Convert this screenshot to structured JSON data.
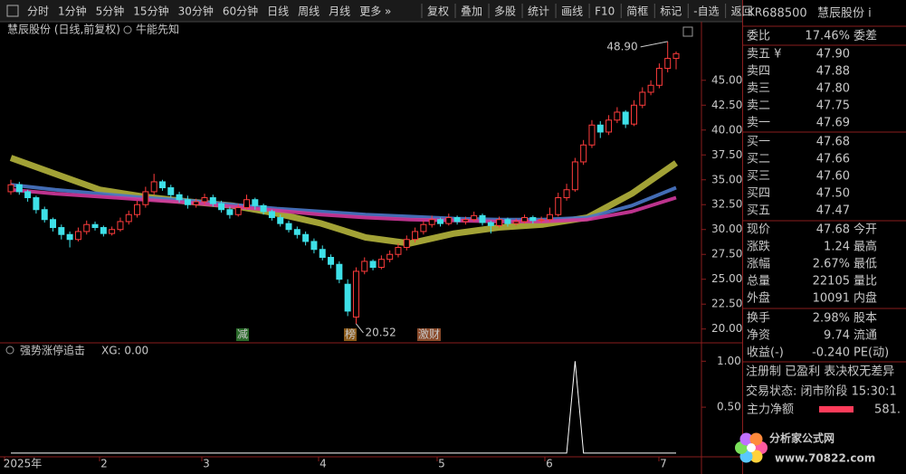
{
  "toolbar": {
    "left": [
      "分时",
      "1分钟",
      "5分钟",
      "15分钟",
      "30分钟",
      "60分钟",
      "日线",
      "周线",
      "月线",
      "更多 »"
    ],
    "right": [
      "复权",
      "叠加",
      "多股",
      "统计",
      "画线",
      "F10",
      "简框",
      "标记",
      "-自选",
      "返回"
    ]
  },
  "chart": {
    "title": "慧辰股份 (日线,前复权)",
    "indicator_name": "牛能先知",
    "ylim": [
      18.7,
      50.8
    ],
    "yticks": [
      {
        "value": 20,
        "label": "20.00"
      },
      {
        "value": 22.5,
        "label": "22.50"
      },
      {
        "value": 25,
        "label": "25.00"
      },
      {
        "value": 27.5,
        "label": "27.50"
      },
      {
        "value": 30,
        "label": "30.00"
      },
      {
        "value": 32.5,
        "label": "32.50"
      },
      {
        "value": 35,
        "label": "35.00"
      },
      {
        "value": 37.5,
        "label": "37.50"
      },
      {
        "value": 40,
        "label": "40.00"
      },
      {
        "value": 42.5,
        "label": "42.50"
      },
      {
        "value": 45,
        "label": "45.00"
      }
    ],
    "up_color": "#ff3c3c",
    "down_color": "#3ee0e8",
    "candles": [
      [
        33.8,
        35.0,
        33.5,
        34.5
      ],
      [
        34.5,
        34.8,
        33.5,
        33.8
      ],
      [
        33.8,
        34.0,
        32.8,
        33.2
      ],
      [
        33.2,
        33.4,
        31.6,
        32.0
      ],
      [
        32.0,
        32.3,
        30.7,
        31.0
      ],
      [
        31.0,
        31.2,
        29.8,
        30.2
      ],
      [
        30.2,
        30.5,
        29.0,
        29.5
      ],
      [
        29.5,
        29.8,
        28.2,
        29.0
      ],
      [
        29.0,
        30.2,
        28.8,
        29.8
      ],
      [
        29.8,
        30.9,
        29.5,
        30.5
      ],
      [
        30.5,
        30.8,
        29.9,
        30.2
      ],
      [
        30.2,
        30.4,
        29.3,
        29.6
      ],
      [
        29.6,
        30.3,
        29.4,
        30.0
      ],
      [
        30.0,
        31.2,
        29.8,
        30.8
      ],
      [
        30.8,
        31.9,
        30.5,
        31.5
      ],
      [
        31.5,
        32.9,
        31.2,
        32.5
      ],
      [
        32.5,
        34.3,
        32.2,
        33.8
      ],
      [
        33.8,
        35.6,
        33.5,
        34.8
      ],
      [
        34.8,
        35.0,
        33.9,
        34.2
      ],
      [
        34.2,
        34.5,
        33.2,
        33.5
      ],
      [
        33.5,
        33.8,
        32.7,
        33.0
      ],
      [
        33.0,
        33.4,
        32.1,
        32.5
      ],
      [
        32.5,
        33.1,
        32.2,
        32.8
      ],
      [
        32.8,
        33.6,
        32.5,
        33.2
      ],
      [
        33.2,
        33.5,
        32.3,
        32.6
      ],
      [
        32.6,
        32.9,
        31.7,
        32.0
      ],
      [
        32.0,
        32.3,
        31.1,
        31.5
      ],
      [
        31.5,
        32.6,
        31.3,
        32.2
      ],
      [
        32.2,
        33.5,
        32.0,
        33.0
      ],
      [
        33.0,
        33.2,
        32.0,
        32.4
      ],
      [
        32.4,
        32.6,
        31.5,
        31.8
      ],
      [
        31.8,
        32.0,
        30.9,
        31.2
      ],
      [
        31.2,
        31.5,
        30.3,
        30.6
      ],
      [
        30.6,
        30.9,
        29.7,
        30.0
      ],
      [
        30.0,
        30.3,
        29.1,
        29.5
      ],
      [
        29.5,
        29.8,
        28.4,
        28.8
      ],
      [
        28.8,
        29.1,
        27.6,
        28.0
      ],
      [
        28.0,
        28.4,
        26.9,
        27.2
      ],
      [
        27.2,
        27.5,
        26.1,
        26.5
      ],
      [
        26.5,
        26.8,
        24.6,
        25.0
      ],
      [
        24.5,
        25.0,
        21.3,
        21.8
      ],
      [
        21.2,
        26.2,
        20.52,
        25.8
      ],
      [
        25.8,
        27.2,
        25.5,
        26.8
      ],
      [
        26.8,
        27.0,
        25.9,
        26.2
      ],
      [
        26.2,
        27.4,
        26.0,
        27.0
      ],
      [
        27.0,
        27.9,
        26.7,
        27.5
      ],
      [
        27.5,
        28.6,
        27.2,
        28.2
      ],
      [
        28.2,
        29.4,
        27.9,
        29.0
      ],
      [
        29.0,
        30.2,
        28.7,
        29.8
      ],
      [
        29.8,
        30.9,
        29.5,
        30.5
      ],
      [
        30.5,
        31.4,
        30.2,
        31.0
      ],
      [
        31.0,
        31.2,
        30.3,
        30.6
      ],
      [
        30.6,
        31.6,
        30.4,
        31.2
      ],
      [
        31.2,
        31.4,
        30.5,
        30.8
      ],
      [
        30.8,
        31.3,
        30.5,
        31.0
      ],
      [
        31.0,
        31.8,
        30.8,
        31.4
      ],
      [
        31.4,
        31.6,
        30.4,
        30.7
      ],
      [
        30.7,
        30.9,
        29.6,
        30.4
      ],
      [
        30.4,
        31.3,
        30.2,
        31.0
      ],
      [
        31.0,
        31.2,
        30.3,
        30.6
      ],
      [
        30.6,
        31.1,
        30.4,
        30.8
      ],
      [
        30.8,
        31.5,
        30.6,
        31.2
      ],
      [
        31.2,
        31.4,
        30.6,
        30.9
      ],
      [
        30.9,
        31.3,
        30.7,
        31.0
      ],
      [
        31.0,
        32.2,
        30.8,
        31.5
      ],
      [
        31.5,
        33.7,
        31.3,
        33.2
      ],
      [
        33.2,
        34.6,
        32.9,
        34.0
      ],
      [
        34.0,
        37.2,
        33.8,
        36.8
      ],
      [
        36.8,
        39.0,
        36.5,
        38.5
      ],
      [
        38.5,
        41.0,
        38.2,
        40.5
      ],
      [
        40.5,
        40.9,
        39.2,
        39.8
      ],
      [
        39.8,
        41.5,
        39.5,
        41.0
      ],
      [
        41.0,
        42.3,
        40.7,
        41.8
      ],
      [
        41.8,
        42.0,
        40.2,
        40.6
      ],
      [
        40.6,
        43.0,
        40.4,
        42.5
      ],
      [
        42.5,
        44.3,
        42.2,
        43.8
      ],
      [
        43.8,
        45.0,
        43.5,
        44.5
      ],
      [
        44.5,
        46.7,
        44.2,
        46.2
      ],
      [
        46.2,
        48.9,
        45.8,
        47.2
      ],
      [
        47.2,
        47.9,
        46.1,
        47.68
      ]
    ],
    "moving_averages": [
      {
        "color": "#b4b43c",
        "values": [
          37.2,
          35.6,
          34.0,
          33.3,
          32.8,
          32.4,
          31.6,
          30.6,
          29.2,
          28.6,
          29.6,
          30.2,
          30.5,
          31.2,
          33.6,
          36.7
        ]
      },
      {
        "color": "#4a78c8",
        "values": [
          34.5,
          34.0,
          33.6,
          33.2,
          32.9,
          32.5,
          32.1,
          31.8,
          31.5,
          31.3,
          31.1,
          31.0,
          31.0,
          31.2,
          32.4,
          34.2
        ]
      },
      {
        "color": "#d0389c",
        "values": [
          34.0,
          33.6,
          33.3,
          33.0,
          32.7,
          32.3,
          31.9,
          31.5,
          31.2,
          31.0,
          30.9,
          30.8,
          30.8,
          31.0,
          31.8,
          33.2
        ]
      }
    ],
    "high_label": "48.90",
    "low_label": "20.52",
    "markers": [
      "减",
      "榜",
      "激财"
    ],
    "x_labels": [
      "2025年",
      "2",
      "3",
      "4",
      "5",
      "6",
      "7"
    ]
  },
  "indicator": {
    "title": "强势涨停追击",
    "value_text": "XG: 0.00",
    "ylim": [
      -0.04,
      1.19
    ],
    "yticks": [
      {
        "value": 1,
        "label": "1.00"
      },
      {
        "value": 0.5,
        "label": "0.50"
      }
    ],
    "values": [
      0,
      0,
      0,
      0,
      0,
      0,
      0,
      0,
      0,
      0,
      0,
      0,
      0,
      0,
      0,
      0,
      0,
      0,
      0,
      0,
      0,
      0,
      0,
      0,
      0,
      0,
      0,
      0,
      0,
      0,
      0,
      0,
      0,
      0,
      0,
      0,
      0,
      0,
      0,
      0,
      0,
      0,
      0,
      0,
      0,
      0,
      0,
      0,
      0,
      0,
      0,
      0,
      0,
      0,
      0,
      0,
      0,
      0,
      0,
      0,
      0,
      0,
      0,
      0,
      0,
      0,
      0,
      1,
      0,
      0,
      0,
      0,
      0,
      0,
      0,
      0,
      0,
      0,
      0,
      0
    ]
  },
  "quote": {
    "badge": "KR",
    "code": "688500",
    "name": "慧辰股份 i",
    "weibi": {
      "label": "委比",
      "value": "17.46%",
      "label2": "委差"
    },
    "book": [
      {
        "label": "卖五 ¥",
        "value": "47.90"
      },
      {
        "label": "卖四",
        "value": "47.88"
      },
      {
        "label": "卖三",
        "value": "47.80"
      },
      {
        "label": "卖二",
        "value": "47.75"
      },
      {
        "label": "卖一",
        "value": "47.69"
      },
      {
        "label": "买一",
        "value": "47.68"
      },
      {
        "label": "买二",
        "value": "47.66"
      },
      {
        "label": "买三",
        "value": "47.60"
      },
      {
        "label": "买四",
        "value": "47.50"
      },
      {
        "label": "买五",
        "value": "47.47"
      }
    ],
    "stats": [
      {
        "label": "现价",
        "value": "47.68",
        "label2": "今开"
      },
      {
        "label": "涨跌",
        "value": "1.24",
        "label2": "最高"
      },
      {
        "label": "涨幅",
        "value": "2.67%",
        "label2": "最低"
      },
      {
        "label": "总量",
        "value": "22105",
        "label2": "量比"
      },
      {
        "label": "外盘",
        "value": "10091",
        "label2": "内盘"
      },
      {
        "label": "换手",
        "value": "2.98%",
        "label2": "股本"
      },
      {
        "label": "净资",
        "value": "9.74",
        "label2": "流通"
      },
      {
        "label": "收益(-)",
        "value": "-0.240",
        "label2": "PE(动)"
      }
    ],
    "tags": "注册制 已盈利 表决权无差异",
    "status": "交易状态: 闭市阶段 15:30:1",
    "main_flow": {
      "label": "主力净额",
      "value": "581."
    }
  },
  "watermark": {
    "name": "分析家公式网",
    "url": "www.70822.com"
  }
}
